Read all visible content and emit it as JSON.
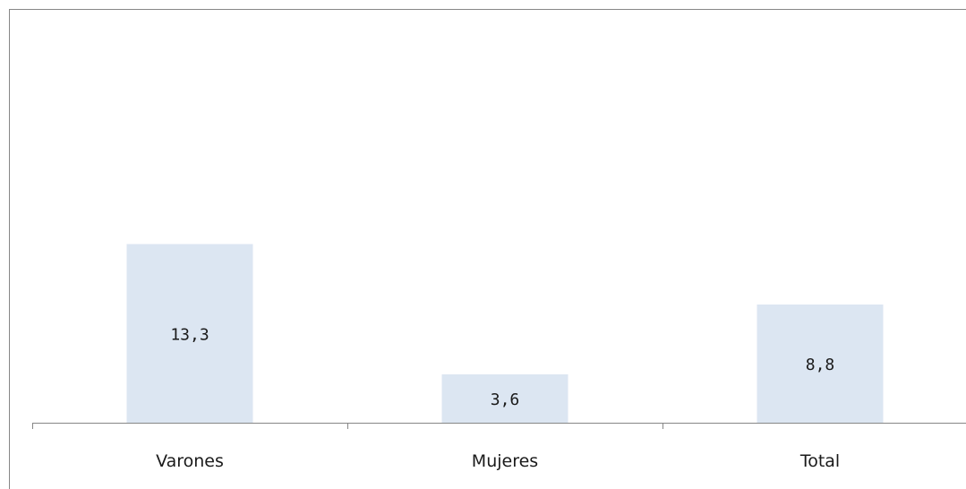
{
  "chart_data": {
    "type": "bar",
    "categories": [
      "Varones",
      "Mujeres",
      "Total"
    ],
    "values": [
      13.3,
      3.6,
      8.8
    ],
    "value_labels": [
      "13,3",
      "3,6",
      "8,8"
    ],
    "ylim": [
      0,
      30
    ],
    "grid": false,
    "legend": "none",
    "colors": {
      "bar": "#dce6f2",
      "axis": "#868686",
      "border": "#868686",
      "text": "#1a1a1a"
    }
  }
}
